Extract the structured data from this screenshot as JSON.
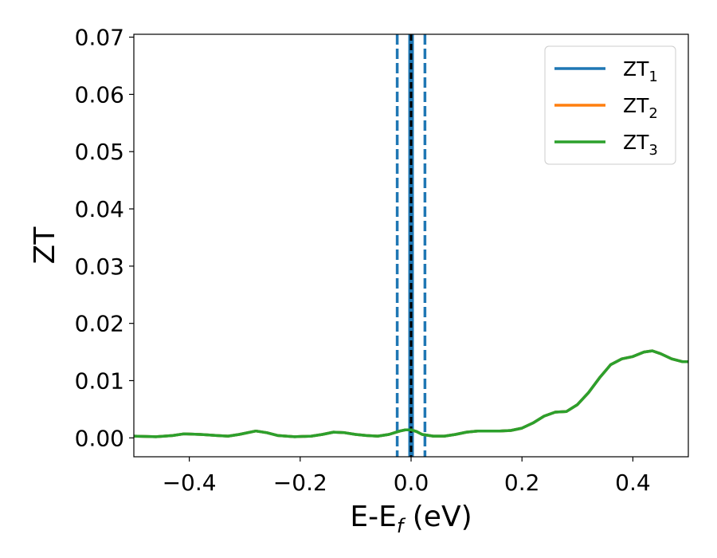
{
  "chart_data": {
    "type": "line",
    "title": "",
    "xlabel": {
      "main": "E-E",
      "sub": "f",
      "suffix": " (eV)"
    },
    "ylabel": "ZT",
    "xlim": [
      -0.5,
      0.5
    ],
    "ylim": [
      -0.0033,
      0.0705
    ],
    "grid": false,
    "legend_position": "top-right",
    "x_ticks": [
      -0.4,
      -0.2,
      0.0,
      0.2,
      0.4
    ],
    "x_tick_labels": [
      "−0.4",
      "−0.2",
      "0.0",
      "0.2",
      "0.4"
    ],
    "y_ticks": [
      0.0,
      0.01,
      0.02,
      0.03,
      0.04,
      0.05,
      0.06,
      0.07
    ],
    "y_tick_labels": [
      "0.00",
      "0.01",
      "0.02",
      "0.03",
      "0.04",
      "0.05",
      "0.06",
      "0.07"
    ],
    "series": [
      {
        "name": "ZT",
        "sub": "1",
        "color": "#1f77b4",
        "x": [
          -0.5,
          -0.46,
          -0.43,
          -0.41,
          -0.38,
          -0.35,
          -0.33,
          -0.31,
          -0.28,
          -0.26,
          -0.24,
          -0.21,
          -0.18,
          -0.16,
          -0.14,
          -0.12,
          -0.1,
          -0.08,
          -0.06,
          -0.04,
          -0.02,
          -0.01,
          0.0,
          0.01,
          0.02,
          0.04,
          0.06,
          0.08,
          0.1,
          0.12,
          0.14,
          0.16,
          0.18,
          0.2,
          0.22,
          0.24,
          0.26,
          0.28,
          0.3,
          0.32,
          0.34,
          0.36,
          0.38,
          0.4,
          0.42,
          0.435,
          0.45,
          0.47,
          0.49,
          0.5
        ],
        "y": [
          0.0003,
          0.0002,
          0.0004,
          0.0007,
          0.0006,
          0.0004,
          0.0003,
          0.0006,
          0.0012,
          0.0009,
          0.0004,
          0.0002,
          0.0003,
          0.0006,
          0.001,
          0.0009,
          0.0006,
          0.0004,
          0.0003,
          0.0006,
          0.0012,
          0.0014,
          0.0014,
          0.0011,
          0.0006,
          0.0003,
          0.0003,
          0.0006,
          0.001,
          0.0012,
          0.0012,
          0.0012,
          0.0013,
          0.0017,
          0.0026,
          0.0038,
          0.0045,
          0.0046,
          0.0058,
          0.0079,
          0.0105,
          0.0128,
          0.0138,
          0.0142,
          0.015,
          0.0152,
          0.0147,
          0.0138,
          0.0133,
          0.0133
        ]
      },
      {
        "name": "ZT",
        "sub": "2",
        "color": "#ff7f0e",
        "x": [
          -0.5,
          -0.46,
          -0.43,
          -0.41,
          -0.38,
          -0.35,
          -0.33,
          -0.31,
          -0.28,
          -0.26,
          -0.24,
          -0.21,
          -0.18,
          -0.16,
          -0.14,
          -0.12,
          -0.1,
          -0.08,
          -0.06,
          -0.04,
          -0.02,
          -0.01,
          0.0,
          0.01,
          0.02,
          0.04,
          0.06,
          0.08,
          0.1,
          0.12,
          0.14,
          0.16,
          0.18,
          0.2,
          0.22,
          0.24,
          0.26,
          0.28,
          0.3,
          0.32,
          0.34,
          0.36,
          0.38,
          0.4,
          0.42,
          0.435,
          0.45,
          0.47,
          0.49,
          0.5
        ],
        "y": [
          0.0003,
          0.0002,
          0.0004,
          0.0007,
          0.0006,
          0.0004,
          0.0003,
          0.0006,
          0.0012,
          0.0009,
          0.0004,
          0.0002,
          0.0003,
          0.0006,
          0.001,
          0.0009,
          0.0006,
          0.0004,
          0.0003,
          0.0006,
          0.0012,
          0.0014,
          0.0014,
          0.0011,
          0.0006,
          0.0003,
          0.0003,
          0.0006,
          0.001,
          0.0012,
          0.0012,
          0.0012,
          0.0013,
          0.0017,
          0.0026,
          0.0038,
          0.0045,
          0.0046,
          0.0058,
          0.0079,
          0.0105,
          0.0128,
          0.0138,
          0.0142,
          0.015,
          0.0152,
          0.0147,
          0.0138,
          0.0133,
          0.0133
        ]
      },
      {
        "name": "ZT",
        "sub": "3",
        "color": "#2ca02c",
        "x": [
          -0.5,
          -0.46,
          -0.43,
          -0.41,
          -0.38,
          -0.35,
          -0.33,
          -0.31,
          -0.28,
          -0.26,
          -0.24,
          -0.21,
          -0.18,
          -0.16,
          -0.14,
          -0.12,
          -0.1,
          -0.08,
          -0.06,
          -0.04,
          -0.02,
          -0.01,
          0.0,
          0.01,
          0.02,
          0.04,
          0.06,
          0.08,
          0.1,
          0.12,
          0.14,
          0.16,
          0.18,
          0.2,
          0.22,
          0.24,
          0.26,
          0.28,
          0.3,
          0.32,
          0.34,
          0.36,
          0.38,
          0.4,
          0.42,
          0.435,
          0.45,
          0.47,
          0.49,
          0.5
        ],
        "y": [
          0.0003,
          0.0002,
          0.0004,
          0.0007,
          0.0006,
          0.0004,
          0.0003,
          0.0006,
          0.0012,
          0.0009,
          0.0004,
          0.0002,
          0.0003,
          0.0006,
          0.001,
          0.0009,
          0.0006,
          0.0004,
          0.0003,
          0.0006,
          0.0012,
          0.0014,
          0.0014,
          0.0011,
          0.0006,
          0.0003,
          0.0003,
          0.0006,
          0.001,
          0.0012,
          0.0012,
          0.0012,
          0.0013,
          0.0017,
          0.0026,
          0.0038,
          0.0045,
          0.0046,
          0.0058,
          0.0079,
          0.0105,
          0.0128,
          0.0138,
          0.0142,
          0.015,
          0.0152,
          0.0147,
          0.0138,
          0.0133,
          0.0133
        ]
      }
    ],
    "vlines": [
      {
        "x": -0.025,
        "color": "#1f77b4",
        "style": "dashed"
      },
      {
        "x": 0.0,
        "color": "#1f77b4",
        "style": "solid",
        "band": 0.005
      },
      {
        "x": 0.025,
        "color": "#1f77b4",
        "style": "dashed"
      },
      {
        "x": 0.0,
        "color": "#000000",
        "style": "dashed"
      }
    ]
  }
}
